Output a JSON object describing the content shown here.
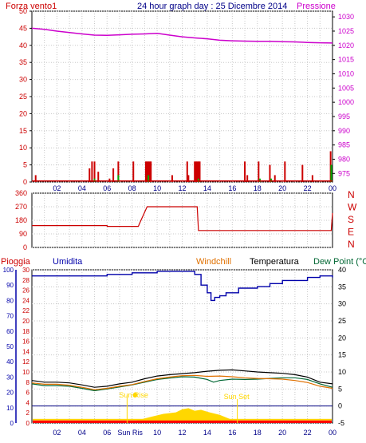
{
  "header": {
    "wind_title": "Forza vento1",
    "center_title": "24 hour graph day : 25 Dicembre 2014",
    "pressure_title": "Pressione"
  },
  "bottom_header": {
    "rain": "Pioggia",
    "humidity": "Umidita",
    "windchill": "Windchill",
    "temperature": "Temperatura",
    "dewpoint": "Dew Point (°C"
  },
  "labels": {
    "sunrise": "Sun Rise",
    "sunset": "Sun Set",
    "sunrise_tick": "Sun Ris"
  },
  "colors": {
    "wind": "#cc0000",
    "pressure": "#cc00cc",
    "humidity": "#0000aa",
    "temperature": "#000000",
    "windchill": "#e07000",
    "dewpoint": "#006633",
    "rain": "#ff0000",
    "solar": "#ffd700",
    "grid": "#c8c8c8"
  },
  "chart_data": [
    {
      "id": "wind-pressure",
      "type": "bar",
      "title": "24 hour graph day : 25 Dicembre 2014",
      "ylabel": "Forza vento1",
      "ylim": [
        0,
        50
      ],
      "yticks": [
        0,
        5,
        10,
        15,
        20,
        25,
        30,
        35,
        40,
        45,
        50
      ],
      "y2label": "Pressione",
      "y2lim": [
        972,
        1032
      ],
      "y2ticks": [
        975,
        980,
        985,
        990,
        995,
        1000,
        1005,
        1010,
        1015,
        1020,
        1025,
        1030
      ],
      "xlim": [
        0,
        24
      ],
      "xticks": [
        "02",
        "04",
        "06",
        "08",
        "10",
        "12",
        "14",
        "16",
        "18",
        "20",
        "22",
        "00"
      ],
      "wind_baseline": 0.3,
      "wind_gusts": [
        {
          "x": 0.3,
          "v": 2
        },
        {
          "x": 4.6,
          "v": 4
        },
        {
          "x": 4.8,
          "v": 6
        },
        {
          "x": 5.0,
          "v": 6
        },
        {
          "x": 5.3,
          "v": 3
        },
        {
          "x": 6.2,
          "v": 1
        },
        {
          "x": 6.5,
          "v": 4
        },
        {
          "x": 6.9,
          "v": 6
        },
        {
          "x": 8.1,
          "v": 6
        },
        {
          "x": 9.1,
          "v": 6
        },
        {
          "x": 9.2,
          "v": 6
        },
        {
          "x": 9.3,
          "v": 6
        },
        {
          "x": 9.4,
          "v": 6
        },
        {
          "x": 9.5,
          "v": 6
        },
        {
          "x": 11.2,
          "v": 2
        },
        {
          "x": 12.4,
          "v": 6
        },
        {
          "x": 12.5,
          "v": 2
        },
        {
          "x": 13.0,
          "v": 6
        },
        {
          "x": 13.1,
          "v": 6
        },
        {
          "x": 13.2,
          "v": 6
        },
        {
          "x": 13.3,
          "v": 6
        },
        {
          "x": 13.4,
          "v": 6
        },
        {
          "x": 17.0,
          "v": 6
        },
        {
          "x": 17.2,
          "v": 2
        },
        {
          "x": 18.1,
          "v": 6
        },
        {
          "x": 19.0,
          "v": 5
        },
        {
          "x": 19.4,
          "v": 2
        },
        {
          "x": 20.2,
          "v": 6
        },
        {
          "x": 21.6,
          "v": 5
        },
        {
          "x": 22.4,
          "v": 2
        },
        {
          "x": 23.85,
          "v": 9
        }
      ],
      "wind_avg": [
        {
          "x": 5.0,
          "v": 1
        },
        {
          "x": 6.9,
          "v": 2
        },
        {
          "x": 9.3,
          "v": 2
        },
        {
          "x": 13.3,
          "v": 1
        },
        {
          "x": 18.2,
          "v": 1
        },
        {
          "x": 19.1,
          "v": 1
        },
        {
          "x": 23.9,
          "v": 5
        }
      ],
      "pressure": [
        {
          "x": 0,
          "v": 1026.0
        },
        {
          "x": 1,
          "v": 1025.6
        },
        {
          "x": 2,
          "v": 1025.0
        },
        {
          "x": 3,
          "v": 1024.5
        },
        {
          "x": 4,
          "v": 1024.0
        },
        {
          "x": 5,
          "v": 1023.6
        },
        {
          "x": 6,
          "v": 1023.5
        },
        {
          "x": 7,
          "v": 1023.7
        },
        {
          "x": 8,
          "v": 1023.9
        },
        {
          "x": 9,
          "v": 1024.0
        },
        {
          "x": 10,
          "v": 1024.2
        },
        {
          "x": 11,
          "v": 1023.6
        },
        {
          "x": 12,
          "v": 1023.0
        },
        {
          "x": 13,
          "v": 1022.6
        },
        {
          "x": 14,
          "v": 1022.3
        },
        {
          "x": 15,
          "v": 1021.8
        },
        {
          "x": 16,
          "v": 1021.6
        },
        {
          "x": 17,
          "v": 1021.5
        },
        {
          "x": 18,
          "v": 1021.4
        },
        {
          "x": 19,
          "v": 1021.4
        },
        {
          "x": 20,
          "v": 1021.3
        },
        {
          "x": 21,
          "v": 1021.2
        },
        {
          "x": 22,
          "v": 1021.0
        },
        {
          "x": 23,
          "v": 1020.9
        },
        {
          "x": 24,
          "v": 1020.8
        }
      ]
    },
    {
      "id": "wind-direction",
      "type": "line",
      "ylim": [
        0,
        360
      ],
      "yticks": [
        0,
        90,
        180,
        270,
        360
      ],
      "compass": [
        "N",
        "W",
        "S",
        "E",
        "N"
      ],
      "xlim": [
        0,
        24
      ],
      "points": [
        {
          "x": 0,
          "v": 145
        },
        {
          "x": 6.0,
          "v": 145
        },
        {
          "x": 6.01,
          "v": 140
        },
        {
          "x": 8.5,
          "v": 140
        },
        {
          "x": 8.6,
          "v": 160
        },
        {
          "x": 9.2,
          "v": 270
        },
        {
          "x": 13.2,
          "v": 270
        },
        {
          "x": 13.3,
          "v": 112
        },
        {
          "x": 23.0,
          "v": 112
        },
        {
          "x": 23.9,
          "v": 112
        },
        {
          "x": 24.0,
          "v": 228
        }
      ]
    },
    {
      "id": "temp-humidity",
      "type": "line",
      "ylim": [
        -5,
        40
      ],
      "yticks": [
        -5,
        0,
        5,
        10,
        15,
        20,
        25,
        30,
        35,
        40
      ],
      "y_hum_lim": [
        0,
        100
      ],
      "y_hum_ticks": [
        0,
        10,
        20,
        30,
        40,
        50,
        60,
        70,
        80,
        90,
        100
      ],
      "y_rain_lim": [
        0,
        30
      ],
      "y_rain_ticks": [
        0,
        2,
        4,
        6,
        8,
        10,
        12,
        14,
        16,
        18,
        20,
        22,
        24,
        26,
        28,
        30
      ],
      "xlim": [
        0,
        24
      ],
      "xticks": [
        "02",
        "04",
        "06",
        "08",
        "10",
        "12",
        "14",
        "16",
        "18",
        "20",
        "22",
        "00"
      ],
      "series": [
        {
          "key": "humidity",
          "name": "Umidita",
          "points": [
            {
              "x": 0,
              "v": 96
            },
            {
              "x": 4,
              "v": 96
            },
            {
              "x": 6,
              "v": 97
            },
            {
              "x": 8,
              "v": 98
            },
            {
              "x": 9.5,
              "v": 98
            },
            {
              "x": 10,
              "v": 99
            },
            {
              "x": 12,
              "v": 99
            },
            {
              "x": 13,
              "v": 97
            },
            {
              "x": 13.5,
              "v": 90
            },
            {
              "x": 14,
              "v": 85
            },
            {
              "x": 14.3,
              "v": 80
            },
            {
              "x": 14.6,
              "v": 82
            },
            {
              "x": 15,
              "v": 83
            },
            {
              "x": 15.5,
              "v": 85
            },
            {
              "x": 16.5,
              "v": 88
            },
            {
              "x": 18,
              "v": 89
            },
            {
              "x": 19,
              "v": 91
            },
            {
              "x": 20,
              "v": 93
            },
            {
              "x": 21,
              "v": 93
            },
            {
              "x": 22,
              "v": 95
            },
            {
              "x": 23,
              "v": 96
            },
            {
              "x": 24,
              "v": 95
            }
          ]
        },
        {
          "key": "temperature",
          "name": "Temperatura",
          "points": [
            {
              "x": 0,
              "v": 7.5
            },
            {
              "x": 1,
              "v": 7.0
            },
            {
              "x": 2,
              "v": 7.0
            },
            {
              "x": 3,
              "v": 6.8
            },
            {
              "x": 4,
              "v": 6.2
            },
            {
              "x": 5,
              "v": 5.5
            },
            {
              "x": 6,
              "v": 5.8
            },
            {
              "x": 7,
              "v": 6.5
            },
            {
              "x": 8,
              "v": 7.0
            },
            {
              "x": 9,
              "v": 8.0
            },
            {
              "x": 10,
              "v": 8.8
            },
            {
              "x": 11,
              "v": 9.2
            },
            {
              "x": 12,
              "v": 9.5
            },
            {
              "x": 13,
              "v": 9.8
            },
            {
              "x": 14,
              "v": 10.2
            },
            {
              "x": 15,
              "v": 10.5
            },
            {
              "x": 16,
              "v": 10.6
            },
            {
              "x": 17,
              "v": 10.3
            },
            {
              "x": 18,
              "v": 10.0
            },
            {
              "x": 19,
              "v": 9.8
            },
            {
              "x": 20,
              "v": 9.6
            },
            {
              "x": 21,
              "v": 9.2
            },
            {
              "x": 22,
              "v": 8.5
            },
            {
              "x": 23,
              "v": 7.0
            },
            {
              "x": 24,
              "v": 6.5
            }
          ]
        },
        {
          "key": "windchill",
          "name": "Windchill",
          "points": [
            {
              "x": 0,
              "v": 6.8
            },
            {
              "x": 1,
              "v": 6.4
            },
            {
              "x": 2,
              "v": 6.4
            },
            {
              "x": 3,
              "v": 6.1
            },
            {
              "x": 4,
              "v": 5.5
            },
            {
              "x": 5,
              "v": 4.8
            },
            {
              "x": 6,
              "v": 5.2
            },
            {
              "x": 7,
              "v": 5.8
            },
            {
              "x": 8,
              "v": 6.3
            },
            {
              "x": 9,
              "v": 7.2
            },
            {
              "x": 10,
              "v": 8.0
            },
            {
              "x": 11,
              "v": 8.5
            },
            {
              "x": 12,
              "v": 8.9
            },
            {
              "x": 13,
              "v": 9.0
            },
            {
              "x": 14,
              "v": 8.7
            },
            {
              "x": 15,
              "v": 8.8
            },
            {
              "x": 16,
              "v": 8.6
            },
            {
              "x": 17,
              "v": 8.3
            },
            {
              "x": 18,
              "v": 8.1
            },
            {
              "x": 19,
              "v": 8.0
            },
            {
              "x": 20,
              "v": 7.9
            },
            {
              "x": 21,
              "v": 7.5
            },
            {
              "x": 22,
              "v": 6.9
            },
            {
              "x": 23,
              "v": 5.8
            },
            {
              "x": 24,
              "v": 5.2
            }
          ]
        },
        {
          "key": "dewpoint",
          "name": "Dew Point (°C",
          "points": [
            {
              "x": 0,
              "v": 6.5
            },
            {
              "x": 1,
              "v": 6.0
            },
            {
              "x": 2,
              "v": 6.0
            },
            {
              "x": 3,
              "v": 5.8
            },
            {
              "x": 4,
              "v": 5.2
            },
            {
              "x": 5,
              "v": 4.5
            },
            {
              "x": 6,
              "v": 5.0
            },
            {
              "x": 7,
              "v": 5.6
            },
            {
              "x": 8,
              "v": 6.2
            },
            {
              "x": 9,
              "v": 7.0
            },
            {
              "x": 10,
              "v": 7.8
            },
            {
              "x": 11,
              "v": 8.2
            },
            {
              "x": 12,
              "v": 8.6
            },
            {
              "x": 13,
              "v": 8.5
            },
            {
              "x": 14,
              "v": 7.8
            },
            {
              "x": 14.5,
              "v": 7.0
            },
            {
              "x": 15,
              "v": 7.5
            },
            {
              "x": 16,
              "v": 7.9
            },
            {
              "x": 17,
              "v": 7.8
            },
            {
              "x": 18,
              "v": 7.9
            },
            {
              "x": 19,
              "v": 8.1
            },
            {
              "x": 20,
              "v": 8.3
            },
            {
              "x": 21,
              "v": 8.3
            },
            {
              "x": 22,
              "v": 7.8
            },
            {
              "x": 23,
              "v": 6.5
            },
            {
              "x": 24,
              "v": 5.5
            }
          ]
        }
      ],
      "rain_total": 0.5,
      "sunrise_hour": 7.6,
      "sunset_hour": 16.4,
      "solar": [
        {
          "x": 7.6,
          "v": 0.0
        },
        {
          "x": 8.5,
          "v": 0.6
        },
        {
          "x": 9.5,
          "v": 1.2
        },
        {
          "x": 10.5,
          "v": 1.8
        },
        {
          "x": 11.5,
          "v": 2.1
        },
        {
          "x": 12,
          "v": 2.7
        },
        {
          "x": 12.5,
          "v": 2.9
        },
        {
          "x": 13,
          "v": 2.4
        },
        {
          "x": 13.5,
          "v": 2.6
        },
        {
          "x": 14,
          "v": 2.2
        },
        {
          "x": 15,
          "v": 1.6
        },
        {
          "x": 15.8,
          "v": 0.8
        },
        {
          "x": 16.4,
          "v": 0.0
        }
      ]
    }
  ]
}
